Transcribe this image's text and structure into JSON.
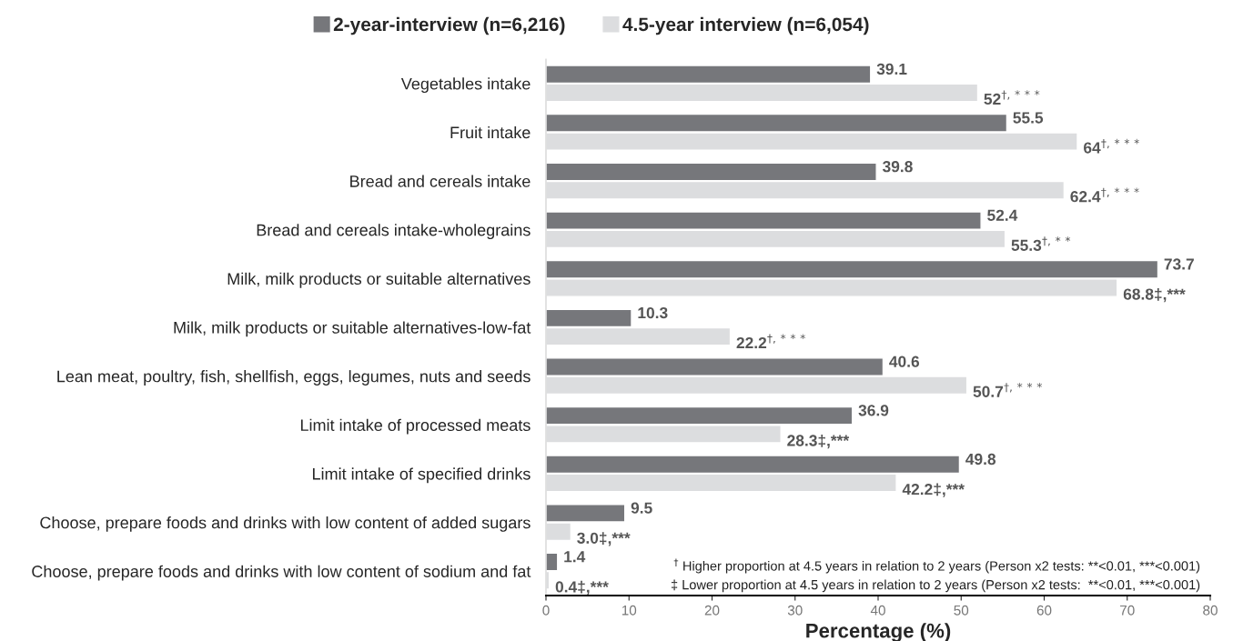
{
  "chart_data": {
    "type": "bar",
    "orientation": "horizontal",
    "xlabel": "Percentage (%)",
    "categories": [
      "Vegetables intake",
      "Fruit intake",
      "Bread and cereals intake",
      "Bread and cereals intake-wholegrains",
      "Milk, milk products or suitable alternatives",
      "Milk, milk products or suitable alternatives-low-fat",
      "Lean meat, poultry, fish, shellfish, eggs, legumes, nuts and seeds",
      "Limit intake of processed meats",
      "Limit intake of specified drinks",
      "Choose, prepare foods and drinks with low content of added sugars",
      "Choose, prepare foods and drinks with low content of sodium and fat"
    ],
    "series": [
      {
        "name": "2-year-interview (n=6,216)",
        "color": "#76777b",
        "values": [
          39.1,
          55.5,
          39.8,
          52.4,
          73.7,
          10.3,
          40.6,
          36.9,
          49.8,
          9.5,
          1.4
        ],
        "value_labels": [
          "39.1",
          "55.5",
          "39.8",
          "52.4",
          "73.7",
          "10.3",
          "40.6",
          "36.9",
          "49.8",
          "9.5",
          "1.4"
        ]
      },
      {
        "name": "4.5-year interview (n=6,054)",
        "color": "#dcdddf",
        "values": [
          52,
          64,
          62.4,
          55.3,
          68.8,
          22.2,
          50.7,
          28.3,
          42.2,
          3.0,
          0.4
        ],
        "value_labels": [
          "52$^{†,***}$",
          "64$^{†,***}$",
          "62.4$^{†,***}$",
          "55.3$^{†,**}$",
          "68.8‡,***",
          "22.2$^{†,***}$",
          "50.7$^{†,***}$",
          "28.3‡,***",
          "42.2‡,***",
          "3.0‡,***",
          "0.4‡,***"
        ]
      }
    ],
    "xlim": [
      0,
      80
    ],
    "xticks": [
      0,
      10,
      20,
      30,
      40,
      50,
      60,
      70,
      80
    ],
    "grid": false,
    "legend": "top",
    "annotations": [
      "$^{†}$ Higher proportion at 4.5 years in relation to 2 years (Person x2 tests: **<0.01, ***<0.001)",
      "‡ Lower proportion at 4.5 years in relation to 2 years (Person x2 tests:  **<0.01, ***<0.001)"
    ]
  }
}
